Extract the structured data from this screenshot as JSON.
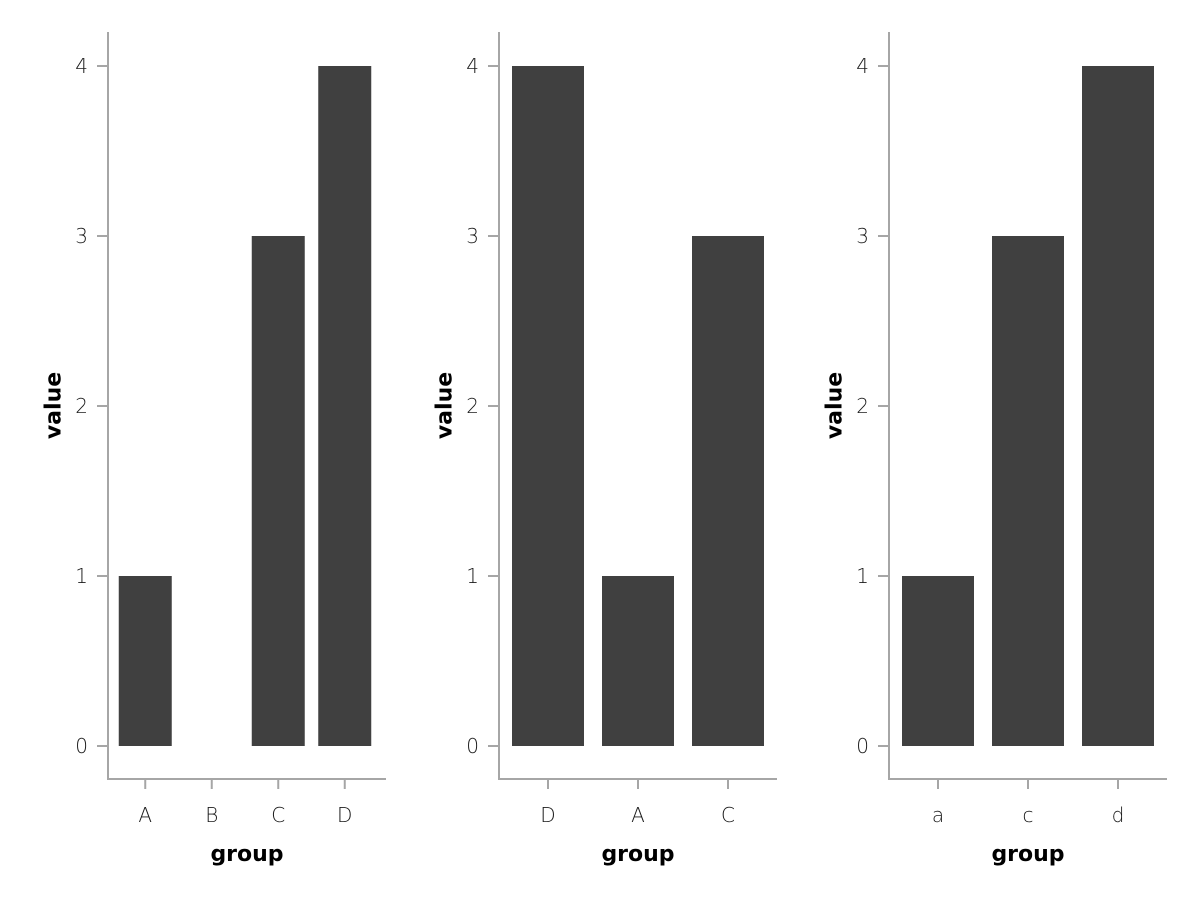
{
  "chart_data": [
    {
      "type": "bar",
      "categories": [
        "A",
        "B",
        "C",
        "D"
      ],
      "values": [
        1,
        0,
        3,
        4
      ],
      "xlabel": "group",
      "ylabel": "value",
      "ylim": [
        0,
        4
      ],
      "yticks": [
        0,
        1,
        2,
        3,
        4
      ],
      "bar_color": "#404040",
      "grid": false
    },
    {
      "type": "bar",
      "categories": [
        "D",
        "A",
        "C"
      ],
      "values": [
        4,
        1,
        3
      ],
      "xlabel": "group",
      "ylabel": "value",
      "ylim": [
        0,
        4
      ],
      "yticks": [
        0,
        1,
        2,
        3,
        4
      ],
      "bar_color": "#404040",
      "grid": false
    },
    {
      "type": "bar",
      "categories": [
        "a",
        "c",
        "d"
      ],
      "values": [
        1,
        3,
        4
      ],
      "xlabel": "group",
      "ylabel": "value",
      "ylim": [
        0,
        4
      ],
      "yticks": [
        0,
        1,
        2,
        3,
        4
      ],
      "bar_color": "#404040",
      "grid": false
    }
  ]
}
